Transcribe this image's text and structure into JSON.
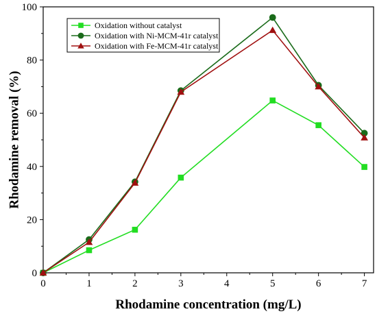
{
  "chart_data": {
    "type": "line",
    "title": "",
    "xlabel": "Rhodamine concentration (mg/L)",
    "ylabel": "Rhodamine removal (%)",
    "xlim": [
      0,
      7.2
    ],
    "ylim": [
      0,
      100
    ],
    "xticks": [
      0,
      1,
      2,
      3,
      4,
      5,
      6,
      7
    ],
    "yticks": [
      0,
      20,
      40,
      60,
      80,
      100
    ],
    "grid": false,
    "legend_position": "top-left",
    "series": [
      {
        "name": "Oxidation without catalyst",
        "color": "#22dd22",
        "marker": "square",
        "x": [
          0,
          1,
          2,
          3,
          5,
          6,
          7
        ],
        "y": [
          0,
          8.5,
          16.2,
          35.8,
          64.8,
          55.5,
          39.8
        ]
      },
      {
        "name": "Oxidation with Ni-MCM-41r catalyst",
        "color": "#1a6b1a",
        "marker": "circle",
        "x": [
          0,
          1,
          2,
          3,
          5,
          6,
          7
        ],
        "y": [
          0,
          12.5,
          34.2,
          68.5,
          96.0,
          70.5,
          52.5
        ]
      },
      {
        "name": "Oxidation with Fe-MCM-41r catalyst",
        "color": "#a01010",
        "marker": "triangle",
        "x": [
          0,
          1,
          2,
          3,
          5,
          6,
          7
        ],
        "y": [
          0,
          11.5,
          33.8,
          68.0,
          91.2,
          70.0,
          50.8
        ]
      }
    ]
  }
}
